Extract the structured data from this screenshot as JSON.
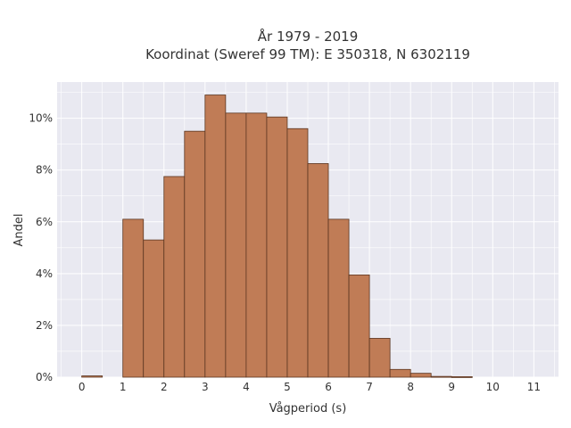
{
  "chart_data": {
    "type": "bar",
    "title_lines": [
      "År 1979 - 2019",
      "Koordinat (Sweref 99 TM): E 350318, N 6302119"
    ],
    "xlabel": "Vågperiod (s)",
    "ylabel": "Andel",
    "bin_width": 0.5,
    "bin_starts": [
      0,
      0.5,
      1,
      1.5,
      2,
      2.5,
      3,
      3.5,
      4,
      4.5,
      5,
      5.5,
      6,
      6.5,
      7,
      7.5,
      8,
      8.5,
      9,
      9.5,
      10,
      10.5
    ],
    "values": [
      0.05,
      0,
      6.1,
      5.3,
      7.75,
      9.5,
      10.9,
      10.2,
      10.2,
      10.05,
      9.6,
      8.25,
      6.1,
      3.95,
      1.5,
      0.3,
      0.15,
      0.03,
      0.02,
      0,
      0,
      0
    ],
    "xlim": [
      -0.6,
      11.6
    ],
    "ylim": [
      0,
      11.4
    ],
    "x_ticks": [
      0,
      1,
      2,
      3,
      4,
      5,
      6,
      7,
      8,
      9,
      10,
      11
    ],
    "x_tick_labels": [
      "0",
      "1",
      "2",
      "3",
      "4",
      "5",
      "6",
      "7",
      "8",
      "9",
      "10",
      "11"
    ],
    "y_ticks": [
      0,
      2,
      4,
      6,
      8,
      10
    ],
    "y_tick_labels": [
      "0%",
      "2%",
      "4%",
      "6%",
      "8%",
      "10%"
    ],
    "grid": true,
    "bar_color": "#c07c56",
    "bar_edge_color": "#5a3520",
    "plot_background": "#e9e9f1",
    "grid_color": "#ffffff"
  }
}
